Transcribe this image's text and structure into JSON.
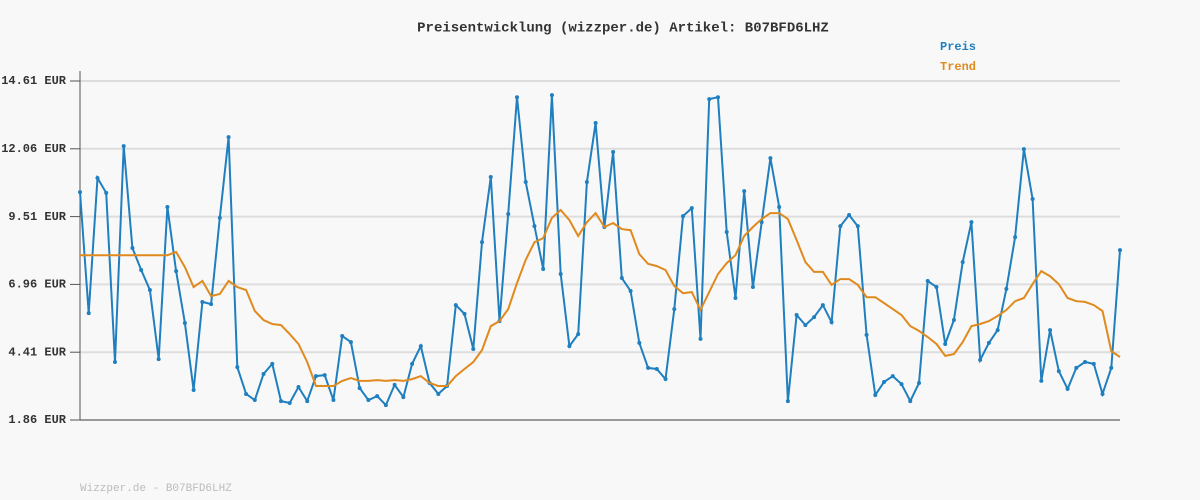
{
  "chart_data": {
    "type": "line",
    "title": "Preisentwicklung (wizzper.de) Artikel: B07BFD6LHZ",
    "source": "Wizzper.de - B07BFD6LHZ",
    "ylim": [
      1.86,
      14.61
    ],
    "yticks": [
      {
        "value": 1.86,
        "label": "1.86 EUR"
      },
      {
        "value": 4.41,
        "label": "4.41 EUR"
      },
      {
        "value": 6.96,
        "label": "6.96 EUR"
      },
      {
        "value": 9.51,
        "label": "9.51 EUR"
      },
      {
        "value": 12.06,
        "label": "12.06 EUR"
      },
      {
        "value": 14.61,
        "label": "14.61 EUR"
      }
    ],
    "grid": true,
    "legend": "top-right",
    "series": [
      {
        "name": "Preis",
        "color": "#1f7fbf",
        "markers": true,
        "values": [
          10.43,
          5.88,
          10.96,
          10.4,
          4.04,
          12.16,
          8.33,
          7.5,
          6.75,
          4.15,
          9.87,
          7.46,
          5.51,
          2.99,
          6.3,
          6.22,
          9.46,
          12.5,
          3.85,
          2.84,
          2.61,
          3.59,
          3.97,
          2.57,
          2.5,
          3.1,
          2.57,
          3.51,
          3.55,
          2.61,
          5.02,
          4.79,
          3.06,
          2.61,
          2.76,
          2.42,
          3.18,
          2.72,
          3.97,
          4.64,
          3.25,
          2.84,
          3.14,
          6.18,
          5.85,
          4.53,
          8.55,
          11.0,
          5.58,
          9.61,
          14.0,
          10.81,
          9.15,
          7.54,
          14.08,
          7.35,
          4.64,
          5.09,
          10.81,
          13.03,
          9.12,
          11.94,
          7.2,
          6.71,
          4.76,
          3.82,
          3.78,
          3.4,
          6.03,
          9.53,
          9.83,
          4.91,
          13.93,
          14.0,
          8.93,
          6.45,
          10.47,
          6.86,
          9.3,
          11.71,
          9.87,
          2.57,
          5.81,
          5.43,
          5.73,
          6.18,
          5.54,
          9.15,
          9.57,
          9.15,
          5.06,
          2.8,
          3.29,
          3.51,
          3.21,
          2.57,
          3.25,
          7.09,
          6.86,
          4.72,
          5.62,
          7.8,
          9.3,
          4.12,
          4.76,
          5.24,
          6.79,
          8.74,
          12.05,
          10.17,
          3.33,
          5.24,
          3.7,
          3.03,
          3.82,
          4.04,
          3.97,
          2.84,
          3.82,
          8.25
        ]
      },
      {
        "name": "Trend",
        "color": "#e08a1e",
        "markers": false,
        "values": [
          8.06,
          8.06,
          8.06,
          8.06,
          8.06,
          8.06,
          8.06,
          8.06,
          8.06,
          8.06,
          8.06,
          8.18,
          7.61,
          6.86,
          7.09,
          6.52,
          6.6,
          7.09,
          6.86,
          6.75,
          5.96,
          5.62,
          5.47,
          5.43,
          5.09,
          4.72,
          4.04,
          3.14,
          3.14,
          3.14,
          3.33,
          3.44,
          3.33,
          3.33,
          3.36,
          3.33,
          3.36,
          3.33,
          3.4,
          3.51,
          3.25,
          3.14,
          3.14,
          3.51,
          3.78,
          4.04,
          4.49,
          5.39,
          5.58,
          6.03,
          7.01,
          7.88,
          8.55,
          8.7,
          9.46,
          9.76,
          9.38,
          8.78,
          9.3,
          9.64,
          9.12,
          9.27,
          9.04,
          9.0,
          8.1,
          7.73,
          7.65,
          7.5,
          6.9,
          6.63,
          6.67,
          6.0,
          6.67,
          7.35,
          7.76,
          8.06,
          8.78,
          9.12,
          9.42,
          9.64,
          9.64,
          9.42,
          8.63,
          7.8,
          7.43,
          7.43,
          6.94,
          7.16,
          7.16,
          6.94,
          6.48,
          6.48,
          6.26,
          6.03,
          5.81,
          5.39,
          5.21,
          4.98,
          4.72,
          4.27,
          4.34,
          4.79,
          5.39,
          5.47,
          5.58,
          5.77,
          6.0,
          6.33,
          6.45,
          6.97,
          7.46,
          7.27,
          6.97,
          6.45,
          6.33,
          6.3,
          6.18,
          5.96,
          4.45,
          4.23
        ]
      }
    ]
  }
}
